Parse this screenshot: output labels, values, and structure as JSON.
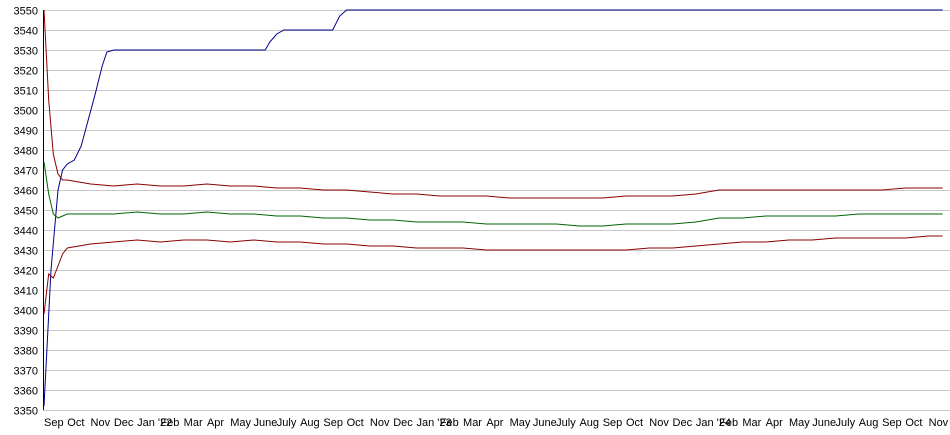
{
  "chart_data": {
    "type": "line",
    "ylim": [
      3350,
      3550
    ],
    "yticks": [
      3550,
      3540,
      3530,
      3520,
      3510,
      3500,
      3490,
      3480,
      3470,
      3460,
      3450,
      3440,
      3430,
      3420,
      3410,
      3400,
      3390,
      3380,
      3370,
      3360,
      3350
    ],
    "xticks": [
      "Sep",
      "Oct",
      "Nov",
      "Dec",
      "Jan '22",
      "Feb",
      "Mar",
      "Apr",
      "May",
      "June",
      "July",
      "Aug",
      "Sep",
      "Oct",
      "Nov",
      "Dec",
      "Jan '23",
      "Feb",
      "Mar",
      "Apr",
      "May",
      "June",
      "July",
      "Aug",
      "Sep",
      "Oct",
      "Nov",
      "Dec",
      "Jan '24",
      "Feb",
      "Mar",
      "Apr",
      "May",
      "June",
      "July",
      "Aug",
      "Sep",
      "Oct",
      "Nov"
    ],
    "grid": true,
    "legend": "none",
    "series": [
      {
        "color": "#00008b",
        "points": [
          [
            0,
            3352
          ],
          [
            0.3,
            3420
          ],
          [
            0.6,
            3460
          ],
          [
            0.8,
            3470
          ],
          [
            1.0,
            3473
          ],
          [
            1.3,
            3475
          ],
          [
            1.6,
            3482
          ],
          [
            1.9,
            3495
          ],
          [
            2.2,
            3508
          ],
          [
            2.5,
            3522
          ],
          [
            2.7,
            3529
          ],
          [
            3.0,
            3530
          ],
          [
            4,
            3530
          ],
          [
            5,
            3530
          ],
          [
            6,
            3530
          ],
          [
            7,
            3530
          ],
          [
            8,
            3530
          ],
          [
            9,
            3530
          ],
          [
            9.5,
            3530
          ],
          [
            9.7,
            3534
          ],
          [
            10.0,
            3538
          ],
          [
            10.3,
            3540
          ],
          [
            11,
            3540
          ],
          [
            12,
            3540
          ],
          [
            12.4,
            3540
          ],
          [
            12.7,
            3547
          ],
          [
            13.0,
            3550
          ],
          [
            14,
            3550
          ],
          [
            20,
            3550
          ],
          [
            30,
            3550
          ],
          [
            38.6,
            3550
          ]
        ]
      },
      {
        "color": "#8b0000",
        "points": [
          [
            0,
            3550
          ],
          [
            0.2,
            3505
          ],
          [
            0.4,
            3478
          ],
          [
            0.6,
            3468
          ],
          [
            0.8,
            3465
          ],
          [
            1,
            3465
          ],
          [
            2,
            3463
          ],
          [
            3,
            3462
          ],
          [
            4,
            3463
          ],
          [
            5,
            3462
          ],
          [
            6,
            3462
          ],
          [
            7,
            3463
          ],
          [
            8,
            3462
          ],
          [
            9,
            3462
          ],
          [
            10,
            3461
          ],
          [
            11,
            3461
          ],
          [
            12,
            3460
          ],
          [
            13,
            3460
          ],
          [
            14,
            3459
          ],
          [
            15,
            3458
          ],
          [
            16,
            3458
          ],
          [
            17,
            3457
          ],
          [
            18,
            3457
          ],
          [
            19,
            3457
          ],
          [
            20,
            3456
          ],
          [
            21,
            3456
          ],
          [
            22,
            3456
          ],
          [
            23,
            3456
          ],
          [
            24,
            3456
          ],
          [
            25,
            3457
          ],
          [
            26,
            3457
          ],
          [
            27,
            3457
          ],
          [
            28,
            3458
          ],
          [
            29,
            3460
          ],
          [
            30,
            3460
          ],
          [
            31,
            3460
          ],
          [
            32,
            3460
          ],
          [
            33,
            3460
          ],
          [
            34,
            3460
          ],
          [
            35,
            3460
          ],
          [
            36,
            3460
          ],
          [
            37,
            3461
          ],
          [
            38,
            3461
          ],
          [
            38.6,
            3461
          ]
        ]
      },
      {
        "color": "#006400",
        "points": [
          [
            0,
            3474
          ],
          [
            0.2,
            3458
          ],
          [
            0.4,
            3448
          ],
          [
            0.6,
            3446
          ],
          [
            0.8,
            3447
          ],
          [
            1,
            3448
          ],
          [
            2,
            3448
          ],
          [
            3,
            3448
          ],
          [
            4,
            3449
          ],
          [
            5,
            3448
          ],
          [
            6,
            3448
          ],
          [
            7,
            3449
          ],
          [
            8,
            3448
          ],
          [
            9,
            3448
          ],
          [
            10,
            3447
          ],
          [
            11,
            3447
          ],
          [
            12,
            3446
          ],
          [
            13,
            3446
          ],
          [
            14,
            3445
          ],
          [
            15,
            3445
          ],
          [
            16,
            3444
          ],
          [
            17,
            3444
          ],
          [
            18,
            3444
          ],
          [
            19,
            3443
          ],
          [
            20,
            3443
          ],
          [
            21,
            3443
          ],
          [
            22,
            3443
          ],
          [
            23,
            3442
          ],
          [
            24,
            3442
          ],
          [
            25,
            3443
          ],
          [
            26,
            3443
          ],
          [
            27,
            3443
          ],
          [
            28,
            3444
          ],
          [
            29,
            3446
          ],
          [
            30,
            3446
          ],
          [
            31,
            3447
          ],
          [
            32,
            3447
          ],
          [
            33,
            3447
          ],
          [
            34,
            3447
          ],
          [
            35,
            3448
          ],
          [
            36,
            3448
          ],
          [
            37,
            3448
          ],
          [
            38,
            3448
          ],
          [
            38.6,
            3448
          ]
        ]
      },
      {
        "color": "#8b0000",
        "points": [
          [
            0,
            3398
          ],
          [
            0.2,
            3418
          ],
          [
            0.4,
            3416
          ],
          [
            0.6,
            3422
          ],
          [
            0.8,
            3428
          ],
          [
            1,
            3431
          ],
          [
            2,
            3433
          ],
          [
            3,
            3434
          ],
          [
            4,
            3435
          ],
          [
            5,
            3434
          ],
          [
            6,
            3435
          ],
          [
            7,
            3435
          ],
          [
            8,
            3434
          ],
          [
            9,
            3435
          ],
          [
            10,
            3434
          ],
          [
            11,
            3434
          ],
          [
            12,
            3433
          ],
          [
            13,
            3433
          ],
          [
            14,
            3432
          ],
          [
            15,
            3432
          ],
          [
            16,
            3431
          ],
          [
            17,
            3431
          ],
          [
            18,
            3431
          ],
          [
            19,
            3430
          ],
          [
            20,
            3430
          ],
          [
            21,
            3430
          ],
          [
            22,
            3430
          ],
          [
            23,
            3430
          ],
          [
            24,
            3430
          ],
          [
            25,
            3430
          ],
          [
            26,
            3431
          ],
          [
            27,
            3431
          ],
          [
            28,
            3432
          ],
          [
            29,
            3433
          ],
          [
            30,
            3434
          ],
          [
            31,
            3434
          ],
          [
            32,
            3435
          ],
          [
            33,
            3435
          ],
          [
            34,
            3436
          ],
          [
            35,
            3436
          ],
          [
            36,
            3436
          ],
          [
            37,
            3436
          ],
          [
            38,
            3437
          ],
          [
            38.6,
            3437
          ]
        ]
      }
    ]
  }
}
